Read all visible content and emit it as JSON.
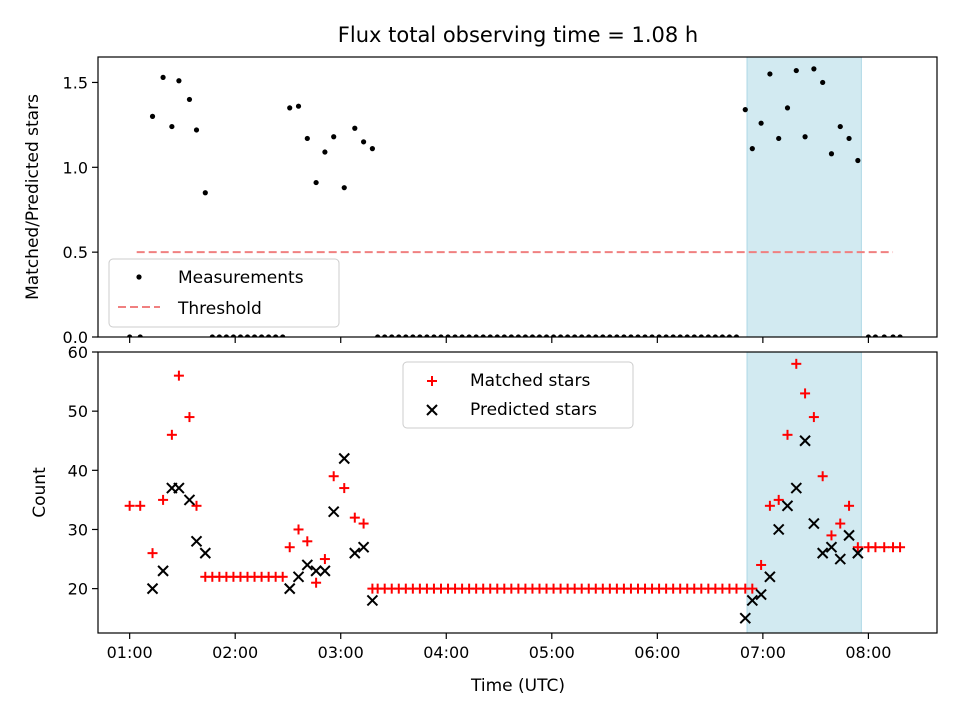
{
  "figure": {
    "title": "Flux total observing time = 1.08 h",
    "xlabel": "Time (UTC)"
  },
  "chart_data": [
    {
      "type": "scatter",
      "ylabel": "Matched/Predicted stars",
      "xlim": [
        "00:42",
        "08:39"
      ],
      "ylim": [
        0,
        1.65
      ],
      "yticks": [
        0.0,
        0.5,
        1.0,
        1.5
      ],
      "ytick_labels": [
        "0.0",
        "0.5",
        "1.0",
        "1.5"
      ],
      "grid": false,
      "legend_location": "lower left",
      "highlight_span": {
        "from": "06:51",
        "to": "07:56",
        "color": "#add8e6"
      },
      "series": [
        {
          "name": "Measurements",
          "marker": "dot",
          "color": "#000000",
          "x": [
            "01:00",
            "01:06",
            "01:13",
            "01:19",
            "01:24",
            "01:28",
            "01:34",
            "01:38",
            "01:43",
            "01:47",
            "01:51",
            "01:55",
            "01:59",
            "02:03",
            "02:07",
            "02:11",
            "02:15",
            "02:19",
            "02:23",
            "02:27",
            "02:31",
            "02:36",
            "02:41",
            "02:46",
            "02:51",
            "02:56",
            "03:02",
            "03:08",
            "03:13",
            "03:18",
            "03:21",
            "03:25",
            "03:29",
            "03:33",
            "03:37",
            "03:41",
            "03:45",
            "03:49",
            "03:53",
            "03:57",
            "04:01",
            "04:05",
            "04:09",
            "04:13",
            "04:17",
            "04:21",
            "04:25",
            "04:29",
            "04:33",
            "04:37",
            "04:41",
            "04:45",
            "04:49",
            "04:53",
            "04:57",
            "05:01",
            "05:05",
            "05:09",
            "05:13",
            "05:17",
            "05:21",
            "05:25",
            "05:29",
            "05:33",
            "05:37",
            "05:41",
            "05:45",
            "05:49",
            "05:53",
            "05:57",
            "06:01",
            "06:05",
            "06:09",
            "06:13",
            "06:17",
            "06:21",
            "06:25",
            "06:29",
            "06:33",
            "06:37",
            "06:41",
            "06:45",
            "06:50",
            "06:54",
            "06:59",
            "07:04",
            "07:09",
            "07:14",
            "07:19",
            "07:24",
            "07:29",
            "07:34",
            "07:39",
            "07:44",
            "07:49",
            "07:54",
            "08:00",
            "08:04",
            "08:09",
            "08:14",
            "08:18"
          ],
          "y": [
            0,
            0,
            1.3,
            1.53,
            1.24,
            1.51,
            1.4,
            1.22,
            0.85,
            0,
            0,
            0,
            0,
            0,
            0,
            0,
            0,
            0,
            0,
            0,
            1.35,
            1.36,
            1.17,
            0.91,
            1.09,
            1.18,
            0.88,
            1.23,
            1.15,
            1.11,
            0,
            0,
            0,
            0,
            0,
            0,
            0,
            0,
            0,
            0,
            0,
            0,
            0,
            0,
            0,
            0,
            0,
            0,
            0,
            0,
            0,
            0,
            0,
            0,
            0,
            0,
            0,
            0,
            0,
            0,
            0,
            0,
            0,
            0,
            0,
            0,
            0,
            0,
            0,
            0,
            0,
            0,
            0,
            0,
            0,
            0,
            0,
            0,
            0,
            0,
            0,
            0,
            1.34,
            1.11,
            1.26,
            1.55,
            1.17,
            1.35,
            1.57,
            1.18,
            1.58,
            1.5,
            1.08,
            1.24,
            1.17,
            1.04,
            0,
            0,
            0,
            0,
            0
          ]
        },
        {
          "name": "Threshold",
          "marker": "dashed-line",
          "color": "#f08080",
          "x": [
            "01:04",
            "08:14"
          ],
          "y": [
            0.5,
            0.5
          ]
        }
      ]
    },
    {
      "type": "scatter",
      "ylabel": "Count",
      "xlim": [
        "00:42",
        "08:39"
      ],
      "ylim": [
        12.5,
        60
      ],
      "yticks": [
        20,
        30,
        40,
        50,
        60
      ],
      "ytick_labels": [
        "20",
        "30",
        "40",
        "50",
        "60"
      ],
      "xticks": [
        "01:00",
        "02:00",
        "03:00",
        "04:00",
        "05:00",
        "06:00",
        "07:00",
        "08:00"
      ],
      "xtick_labels": [
        "01:00",
        "02:00",
        "03:00",
        "04:00",
        "05:00",
        "06:00",
        "07:00",
        "08:00"
      ],
      "grid": false,
      "legend_location": "upper center",
      "highlight_span": {
        "from": "06:51",
        "to": "07:56",
        "color": "#add8e6"
      },
      "series": [
        {
          "name": "Matched stars",
          "marker": "plus",
          "color": "#ff0000",
          "x": [
            "01:00",
            "01:06",
            "01:13",
            "01:19",
            "01:24",
            "01:28",
            "01:34",
            "01:38",
            "01:43",
            "01:47",
            "01:51",
            "01:55",
            "01:59",
            "02:03",
            "02:07",
            "02:11",
            "02:15",
            "02:19",
            "02:23",
            "02:27",
            "02:31",
            "02:36",
            "02:41",
            "02:46",
            "02:51",
            "02:56",
            "03:02",
            "03:08",
            "03:13",
            "03:18",
            "03:21",
            "03:25",
            "03:29",
            "03:33",
            "03:37",
            "03:41",
            "03:45",
            "03:49",
            "03:53",
            "03:57",
            "04:01",
            "04:05",
            "04:09",
            "04:13",
            "04:17",
            "04:21",
            "04:25",
            "04:29",
            "04:33",
            "04:37",
            "04:41",
            "04:45",
            "04:49",
            "04:53",
            "04:57",
            "05:01",
            "05:05",
            "05:09",
            "05:13",
            "05:17",
            "05:21",
            "05:25",
            "05:29",
            "05:33",
            "05:37",
            "05:41",
            "05:45",
            "05:49",
            "05:53",
            "05:57",
            "06:01",
            "06:05",
            "06:09",
            "06:13",
            "06:17",
            "06:21",
            "06:25",
            "06:29",
            "06:33",
            "06:37",
            "06:41",
            "06:45",
            "06:50",
            "06:54",
            "06:59",
            "07:04",
            "07:09",
            "07:14",
            "07:19",
            "07:24",
            "07:29",
            "07:34",
            "07:39",
            "07:44",
            "07:49",
            "07:54",
            "08:00",
            "08:04",
            "08:09",
            "08:14",
            "08:18"
          ],
          "y": [
            34,
            34,
            26,
            35,
            46,
            56,
            49,
            34,
            22,
            22,
            22,
            22,
            22,
            22,
            22,
            22,
            22,
            22,
            22,
            22,
            27,
            30,
            28,
            21,
            25,
            39,
            37,
            32,
            31,
            20,
            20,
            20,
            20,
            20,
            20,
            20,
            20,
            20,
            20,
            20,
            20,
            20,
            20,
            20,
            20,
            20,
            20,
            20,
            20,
            20,
            20,
            20,
            20,
            20,
            20,
            20,
            20,
            20,
            20,
            20,
            20,
            20,
            20,
            20,
            20,
            20,
            20,
            20,
            20,
            20,
            20,
            20,
            20,
            20,
            20,
            20,
            20,
            20,
            20,
            20,
            20,
            20,
            20,
            20,
            24,
            34,
            35,
            46,
            58,
            53,
            49,
            39,
            29,
            31,
            34,
            27,
            27,
            27,
            27,
            27,
            27
          ]
        },
        {
          "name": "Predicted stars",
          "marker": "x",
          "color": "#000000",
          "x": [
            "01:13",
            "01:19",
            "01:24",
            "01:28",
            "01:34",
            "01:38",
            "01:43",
            "02:31",
            "02:36",
            "02:41",
            "02:46",
            "02:51",
            "02:56",
            "03:02",
            "03:08",
            "03:13",
            "03:18",
            "06:50",
            "06:54",
            "06:59",
            "07:04",
            "07:09",
            "07:14",
            "07:19",
            "07:24",
            "07:29",
            "07:34",
            "07:39",
            "07:44",
            "07:49",
            "07:54"
          ],
          "y": [
            20,
            23,
            37,
            37,
            35,
            28,
            26,
            20,
            22,
            24,
            23,
            23,
            33,
            42,
            26,
            27,
            18,
            15,
            18,
            19,
            22,
            30,
            34,
            37,
            45,
            31,
            26,
            27,
            25,
            29,
            26
          ]
        }
      ]
    }
  ]
}
